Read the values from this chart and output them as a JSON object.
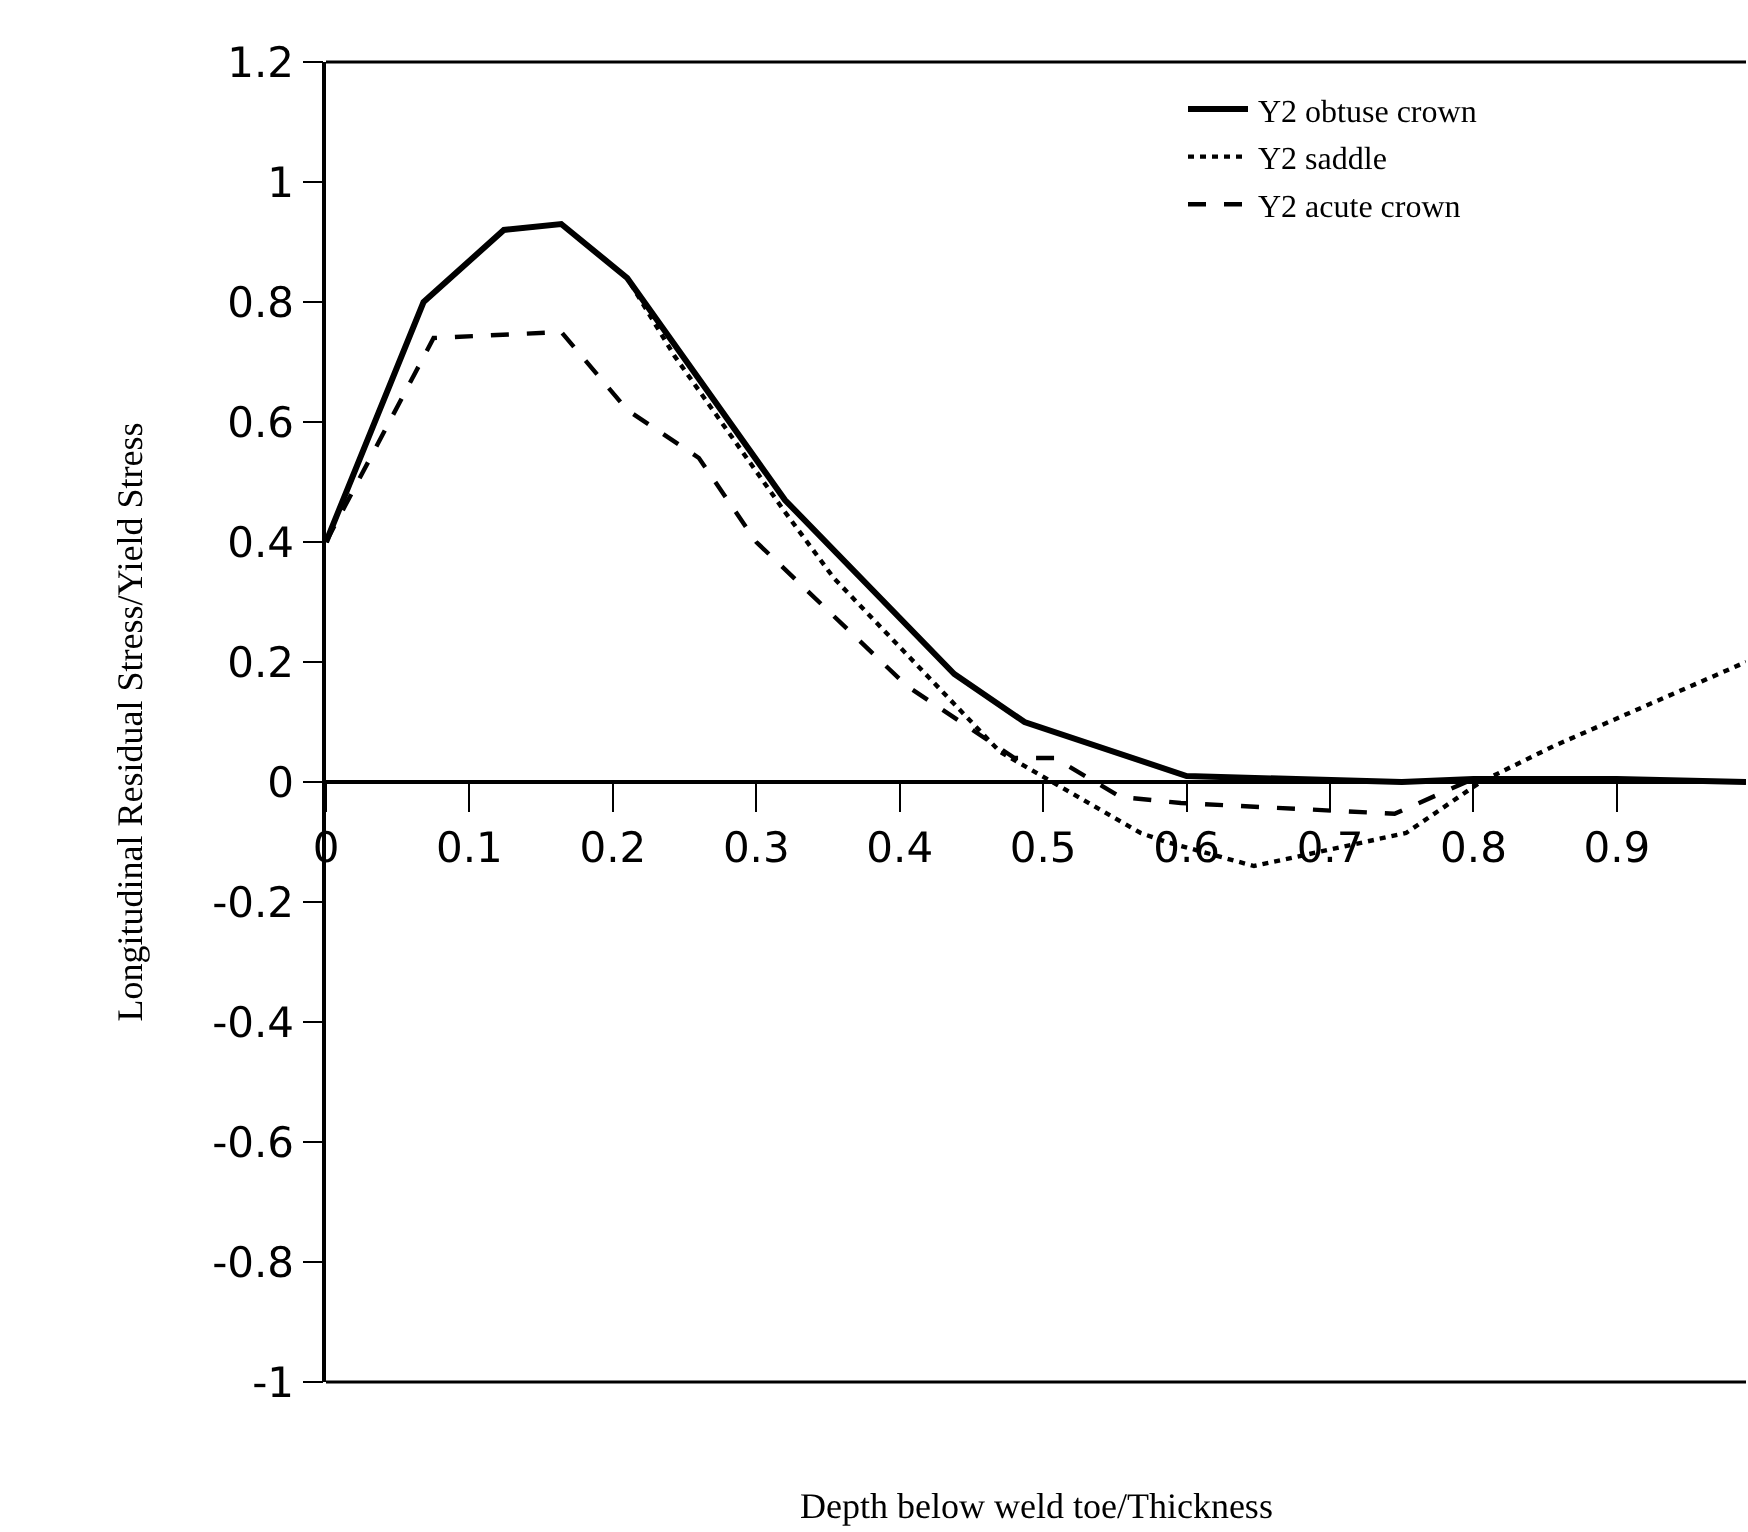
{
  "chart_data": {
    "type": "line",
    "xlabel": "Depth below weld toe/Thickness",
    "ylabel": "Longitudinal Residual Stress/Yield Stress",
    "xlim": [
      0,
      0.99
    ],
    "xticks": [
      0,
      0.1,
      0.2,
      0.3,
      0.4,
      0.5,
      0.6,
      0.7,
      0.8,
      0.9
    ],
    "ylim": [
      -1,
      1.2
    ],
    "yticks": [
      -1,
      -0.8,
      -0.6,
      -0.4,
      -0.2,
      0,
      0.2,
      0.4,
      0.6,
      0.8,
      1,
      1.2
    ],
    "grid": false,
    "legend": "top right",
    "marker": "none",
    "series": [
      {
        "name": "Y2 obtuse crown",
        "color": "#000000",
        "line_style": "solid",
        "x": [
          0,
          0.068,
          0.124,
          0.164,
          0.21,
          0.32,
          0.438,
          0.487,
          0.6,
          0.75,
          0.8,
          0.9,
          0.99
        ],
        "values": [
          0.4,
          0.8,
          0.92,
          0.93,
          0.84,
          0.47,
          0.18,
          0.1,
          0.01,
          0,
          0.005,
          0.005,
          0
        ]
      },
      {
        "name": "Y2 saddle",
        "color": "#000000",
        "line_style": "dotted",
        "x": [
          0,
          0.068,
          0.124,
          0.164,
          0.21,
          0.243,
          0.32,
          0.354,
          0.47,
          0.568,
          0.586,
          0.647,
          0.753,
          0.805,
          0.856,
          0.99
        ],
        "values": [
          0.4,
          0.8,
          0.92,
          0.93,
          0.84,
          0.71,
          0.45,
          0.34,
          0.05,
          -0.085,
          -0.1,
          -0.14,
          -0.085,
          0,
          0.06,
          0.2
        ]
      },
      {
        "name": "Y2 acute crown",
        "color": "#000000",
        "line_style": "dashed",
        "x": [
          0,
          0.075,
          0.164,
          0.21,
          0.26,
          0.3,
          0.405,
          0.48,
          0.508,
          0.554,
          0.596,
          0.745,
          0.795
        ],
        "values": [
          0.4,
          0.74,
          0.75,
          0.62,
          0.54,
          0.4,
          0.16,
          0.04,
          0.04,
          -0.025,
          -0.035,
          -0.053,
          0
        ]
      }
    ]
  }
}
